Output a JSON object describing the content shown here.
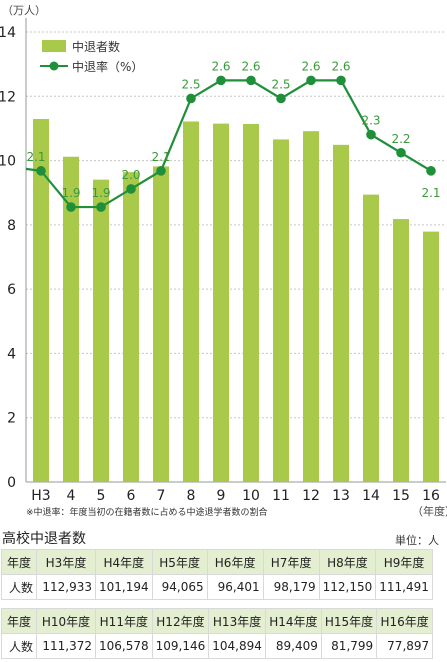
{
  "chart_data": {
    "type": "bar",
    "categories": [
      "H3",
      "4",
      "5",
      "6",
      "7",
      "8",
      "9",
      "10",
      "11",
      "12",
      "13",
      "14",
      "15",
      "16"
    ],
    "xlabel": "（年度）",
    "ylabel": "（万人）",
    "ylim": [
      0,
      14
    ],
    "yticks": [
      0,
      2,
      4,
      6,
      8,
      10,
      12,
      14
    ],
    "grid": true,
    "legend": "top-left",
    "series": [
      {
        "name": "中退者数",
        "type": "bar",
        "color": "#a8c94a",
        "values": [
          11.2933,
          10.1194,
          9.4065,
          9.6401,
          9.8179,
          11.215,
          11.1491,
          11.1372,
          10.6578,
          10.9146,
          10.4894,
          8.9409,
          8.1799,
          7.7897
        ]
      },
      {
        "name": "中退率（%）",
        "type": "line",
        "color": "#1f8f3a",
        "values": [
          2.1,
          1.9,
          1.9,
          2.0,
          2.1,
          2.5,
          2.6,
          2.6,
          2.5,
          2.6,
          2.6,
          2.3,
          2.2,
          2.1
        ],
        "labels": [
          "2.1",
          "1.9",
          "1.9",
          "2.0",
          "2.1",
          "2.5",
          "2.6",
          "2.6",
          "2.5",
          "2.6",
          "2.6",
          "2.3",
          "2.2",
          "2.1"
        ]
      }
    ]
  },
  "footnote": "※中退率：年度当初の在籍者数に占める中途退学者数の割合",
  "table": {
    "title": "高校中退者数",
    "unit": "単位：人",
    "year_header": "年度",
    "count_header": "人数",
    "part1": {
      "years": [
        "H3年度",
        "H4年度",
        "H5年度",
        "H6年度",
        "H7年度",
        "H8年度",
        "H9年度"
      ],
      "values": [
        "112,933",
        "101,194",
        "94,065",
        "96,401",
        "98,179",
        "112,150",
        "111,491"
      ]
    },
    "part2": {
      "years": [
        "H10年度",
        "H11年度",
        "H12年度",
        "H13年度",
        "H14年度",
        "H15年度",
        "H16年度"
      ],
      "values": [
        "111,372",
        "106,578",
        "109,146",
        "104,894",
        "89,409",
        "81,799",
        "77,897"
      ]
    }
  }
}
